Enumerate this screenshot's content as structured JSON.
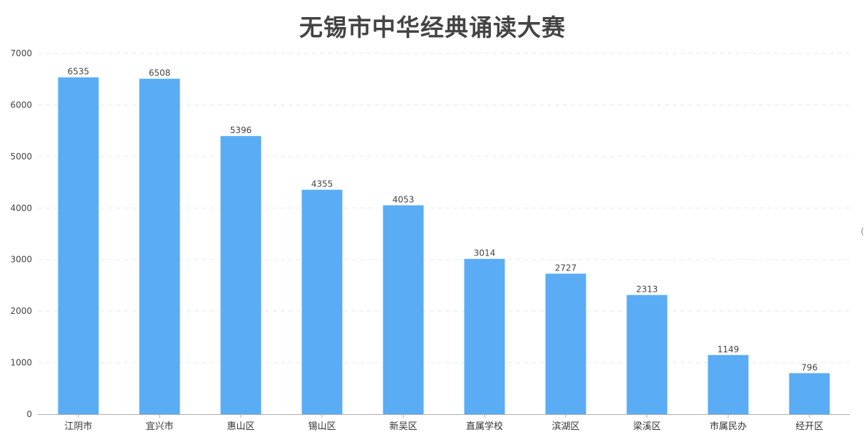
{
  "chart_data": {
    "type": "bar",
    "title": "无锡市中华经典诵读大赛",
    "xlabel": "",
    "ylabel": "",
    "categories": [
      "江阴市",
      "宜兴市",
      "惠山区",
      "锡山区",
      "新吴区",
      "直属学校",
      "滨湖区",
      "梁溪区",
      "市属民办",
      "经开区"
    ],
    "values": [
      6535,
      6508,
      5396,
      4355,
      4053,
      3014,
      2727,
      2313,
      1149,
      796
    ],
    "ylim": [
      0,
      7000
    ],
    "yticks": [
      "0",
      "1000",
      "2000",
      "3000",
      "4000",
      "5000",
      "6000",
      "7000"
    ],
    "grid": true,
    "bar_color": "#5aacf5",
    "data_labels": true
  },
  "edge_glyph": "("
}
